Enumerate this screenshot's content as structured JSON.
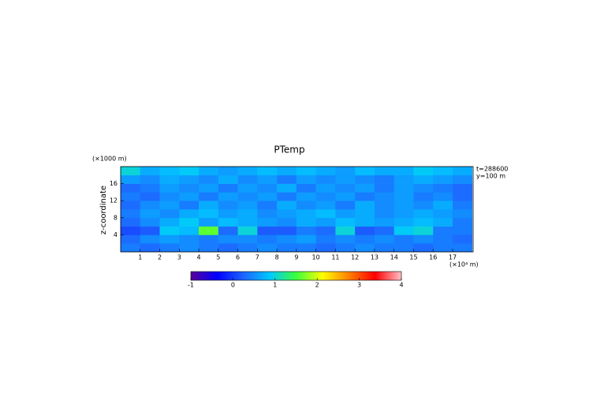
{
  "chart_data": {
    "type": "heatmap",
    "title": "PTemp",
    "ylabel": "z-coordinate",
    "yunit": "(×1000 m)",
    "xunit": "(×10⁴ m)",
    "annotations": [
      "t=288600",
      "y=100 m"
    ],
    "x": [
      0.5,
      1.5,
      2.5,
      3.5,
      4.5,
      5.5,
      6.5,
      7.5,
      8.5,
      9.5,
      10.5,
      11.5,
      12.5,
      13.5,
      14.5,
      15.5,
      16.5,
      17.5
    ],
    "y": [
      1,
      3,
      5,
      7,
      9,
      11,
      13,
      15,
      17,
      19
    ],
    "z": [
      [
        0.4,
        0.3,
        0.4,
        0.5,
        0.4,
        0.3,
        0.4,
        0.5,
        0.4,
        0.4,
        0.3,
        0.4,
        0.5,
        0.4,
        0.4,
        0.3,
        0.4,
        0.4
      ],
      [
        0.3,
        0.5,
        0.6,
        0.5,
        0.4,
        0.5,
        0.5,
        0.4,
        0.5,
        0.6,
        0.4,
        0.5,
        0.4,
        0.5,
        0.4,
        0.5,
        0.4,
        0.3
      ],
      [
        0.1,
        0.2,
        0.9,
        0.8,
        1.6,
        0.3,
        1.0,
        0.2,
        0.2,
        0.4,
        0.3,
        1.0,
        0.2,
        0.3,
        0.9,
        1.0,
        0.4,
        0.4
      ],
      [
        0.3,
        0.5,
        0.7,
        0.9,
        0.6,
        0.8,
        0.7,
        0.6,
        0.5,
        0.7,
        0.6,
        0.8,
        0.7,
        0.6,
        0.7,
        0.8,
        0.7,
        0.4
      ],
      [
        0.4,
        0.6,
        0.5,
        0.7,
        0.8,
        0.6,
        0.7,
        0.5,
        0.6,
        0.7,
        0.8,
        0.6,
        0.7,
        0.5,
        0.6,
        0.7,
        0.6,
        0.5
      ],
      [
        0.3,
        0.5,
        0.6,
        0.4,
        0.7,
        0.5,
        0.6,
        0.4,
        0.7,
        0.5,
        0.6,
        0.4,
        0.7,
        0.5,
        0.6,
        0.5,
        0.7,
        0.4
      ],
      [
        0.4,
        0.3,
        0.5,
        0.6,
        0.4,
        0.6,
        0.5,
        0.6,
        0.4,
        0.6,
        0.5,
        0.6,
        0.4,
        0.5,
        0.6,
        0.4,
        0.5,
        0.3
      ],
      [
        0.3,
        0.4,
        0.6,
        0.5,
        0.6,
        0.4,
        0.6,
        0.5,
        0.7,
        0.4,
        0.6,
        0.5,
        0.6,
        0.4,
        0.6,
        0.5,
        0.4,
        0.3
      ],
      [
        0.6,
        0.5,
        0.7,
        0.6,
        0.5,
        0.7,
        0.5,
        0.6,
        0.4,
        0.6,
        0.5,
        0.6,
        0.5,
        0.4,
        0.6,
        0.7,
        0.6,
        0.5
      ],
      [
        1.0,
        0.7,
        0.8,
        0.9,
        0.7,
        0.6,
        0.7,
        0.8,
        0.7,
        0.8,
        0.7,
        0.6,
        0.8,
        0.7,
        0.7,
        0.9,
        0.8,
        0.7
      ]
    ],
    "xlim": [
      0,
      18.05
    ],
    "ylim": [
      0,
      20
    ],
    "xticks": [
      1,
      2,
      3,
      4,
      5,
      6,
      7,
      8,
      9,
      10,
      11,
      12,
      13,
      14,
      15,
      16,
      17
    ],
    "yticks": [
      4,
      8,
      12,
      16
    ],
    "clim": [
      -1,
      4
    ],
    "cticks": [
      -1,
      0,
      1,
      2,
      3,
      4
    ],
    "colorscale": [
      "#5a0096",
      "#0000ff",
      "#1e64ff",
      "#00c8ff",
      "#3cff3c",
      "#ffff00",
      "#ff8000",
      "#ff0000",
      "#ffc0c8"
    ]
  }
}
